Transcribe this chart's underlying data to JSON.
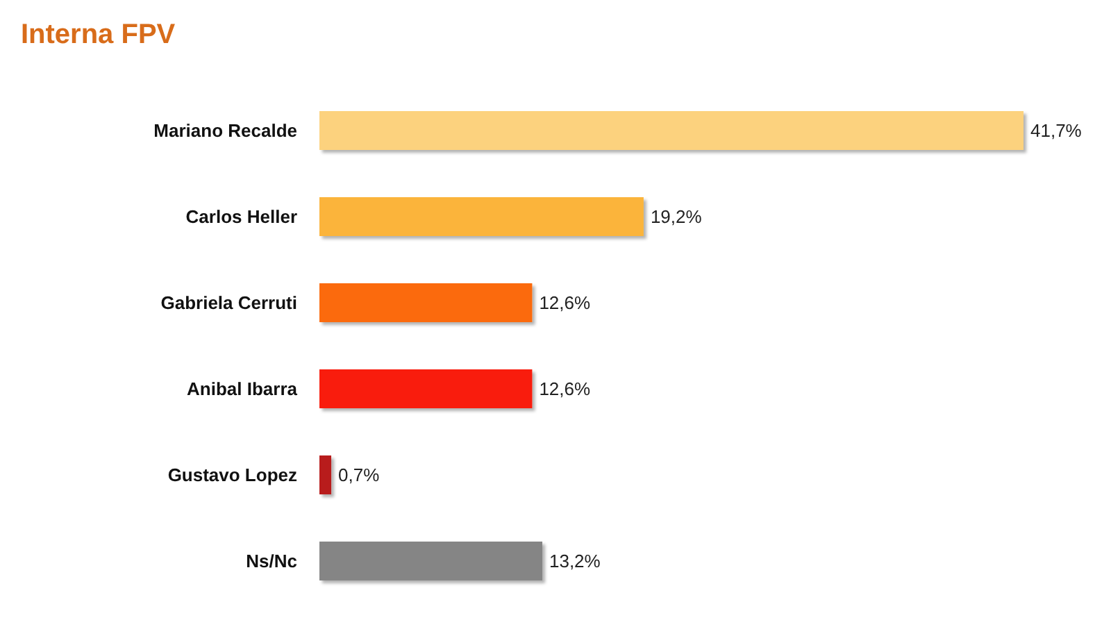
{
  "chart_data": {
    "type": "bar",
    "orientation": "horizontal",
    "title": "Interna FPV",
    "categories": [
      "Mariano Recalde",
      "Carlos Heller",
      "Gabriela Cerruti",
      "Anibal Ibarra",
      "Gustavo Lopez",
      "Ns/Nc"
    ],
    "values": [
      41.7,
      19.2,
      12.6,
      12.6,
      0.7,
      13.2
    ],
    "colors": [
      "#fcd27e",
      "#fbb43a",
      "#fb6a0a",
      "#f91a0f",
      "#b81c1c",
      "#858585"
    ],
    "value_labels": [
      "41,7%",
      "19,2%",
      "12,6%",
      "12,6%",
      "0,7%",
      "13,2%"
    ]
  }
}
